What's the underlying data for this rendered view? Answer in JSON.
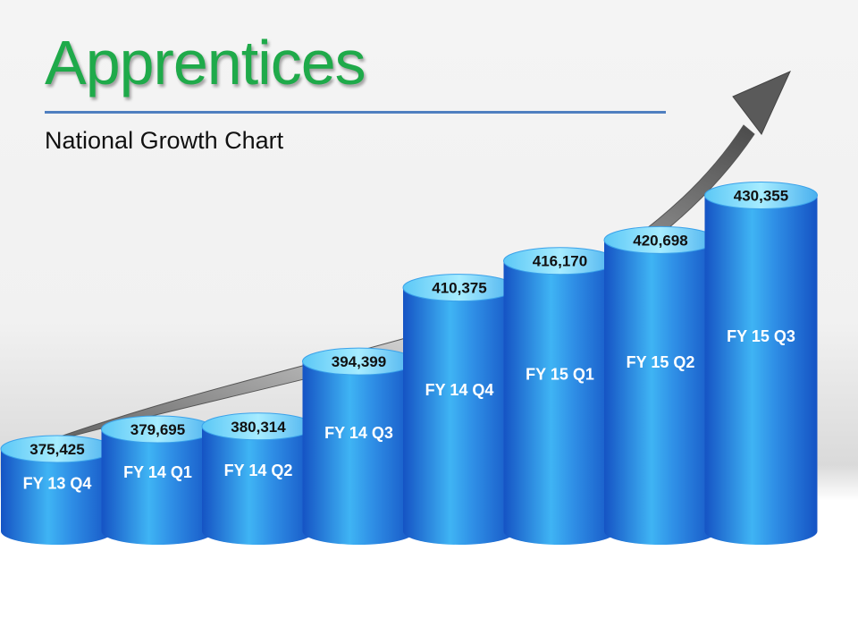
{
  "slide": {
    "title": "Apprentices",
    "subtitle": "National Growth Chart"
  },
  "colors": {
    "title": "#1faa4a",
    "rule": "#4f7fc0",
    "cylinder_dark": "#1553c4",
    "cylinder_light": "#3fb4f4",
    "cylinder_top": "#8fe4ff",
    "arrow": "#666666"
  },
  "chart_data": {
    "type": "bar",
    "style": "3d-cylinder",
    "title": "National Growth Chart",
    "categories": [
      "FY 13 Q4",
      "FY 14 Q1",
      "FY 14 Q2",
      "FY 14 Q3",
      "FY 14 Q4",
      "FY 15 Q1",
      "FY 15 Q2",
      "FY 15 Q3"
    ],
    "values": [
      375425,
      379695,
      380314,
      394399,
      410375,
      416170,
      420698,
      430355
    ],
    "value_labels": [
      "375,425",
      "379,695",
      "380,314",
      "394,399",
      "410,375",
      "416,170",
      "420,698",
      "430,355"
    ],
    "xlabel": "",
    "ylabel": "",
    "ylim": [
      370000,
      432000
    ],
    "grid": false,
    "legend": "none",
    "trend_arrow": "rising"
  }
}
